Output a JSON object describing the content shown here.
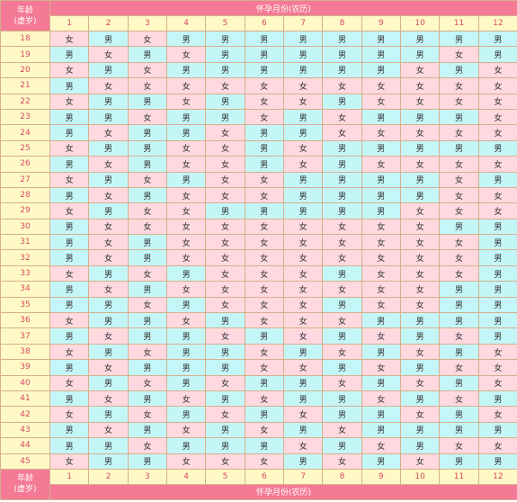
{
  "header": {
    "age_title_line1": "年龄",
    "age_title_line2": "(虚岁)",
    "month_title": "怀孕月份(农历)"
  },
  "months": [
    "1",
    "2",
    "3",
    "4",
    "5",
    "6",
    "7",
    "8",
    "9",
    "10",
    "11",
    "12"
  ],
  "legend": {
    "boy": "男",
    "girl": "女"
  },
  "colors": {
    "header_bg": "#f47a96",
    "label_bg": "#fff9c6",
    "label_text": "#d84a64",
    "boy_bg": "#c4f6f8",
    "girl_bg": "#ffd9df",
    "border": "#d6b08c"
  },
  "rows": [
    {
      "age": "18",
      "cells": [
        "女",
        "男",
        "女",
        "男",
        "男",
        "男",
        "男",
        "男",
        "男",
        "男",
        "男",
        "男"
      ]
    },
    {
      "age": "19",
      "cells": [
        "男",
        "女",
        "男",
        "女",
        "男",
        "男",
        "男",
        "男",
        "男",
        "男",
        "女",
        "男"
      ]
    },
    {
      "age": "20",
      "cells": [
        "女",
        "男",
        "女",
        "男",
        "男",
        "男",
        "男",
        "男",
        "男",
        "女",
        "男",
        "女"
      ]
    },
    {
      "age": "21",
      "cells": [
        "男",
        "女",
        "女",
        "女",
        "女",
        "女",
        "女",
        "女",
        "女",
        "女",
        "女",
        "女"
      ]
    },
    {
      "age": "22",
      "cells": [
        "女",
        "男",
        "男",
        "女",
        "男",
        "女",
        "女",
        "男",
        "女",
        "女",
        "女",
        "女"
      ]
    },
    {
      "age": "23",
      "cells": [
        "男",
        "男",
        "女",
        "男",
        "男",
        "女",
        "男",
        "女",
        "男",
        "男",
        "男",
        "女"
      ]
    },
    {
      "age": "24",
      "cells": [
        "男",
        "女",
        "男",
        "男",
        "女",
        "男",
        "男",
        "女",
        "女",
        "女",
        "女",
        "女"
      ]
    },
    {
      "age": "25",
      "cells": [
        "女",
        "男",
        "男",
        "女",
        "女",
        "男",
        "女",
        "男",
        "男",
        "男",
        "男",
        "男"
      ]
    },
    {
      "age": "26",
      "cells": [
        "男",
        "女",
        "男",
        "女",
        "女",
        "男",
        "女",
        "男",
        "女",
        "女",
        "女",
        "女"
      ]
    },
    {
      "age": "27",
      "cells": [
        "女",
        "男",
        "女",
        "男",
        "女",
        "女",
        "男",
        "男",
        "男",
        "男",
        "女",
        "男"
      ]
    },
    {
      "age": "28",
      "cells": [
        "男",
        "女",
        "男",
        "女",
        "女",
        "女",
        "男",
        "男",
        "男",
        "男",
        "女",
        "女"
      ]
    },
    {
      "age": "29",
      "cells": [
        "女",
        "男",
        "女",
        "女",
        "男",
        "男",
        "男",
        "男",
        "男",
        "女",
        "女",
        "女"
      ]
    },
    {
      "age": "30",
      "cells": [
        "男",
        "女",
        "女",
        "女",
        "女",
        "女",
        "女",
        "女",
        "女",
        "女",
        "男",
        "男"
      ]
    },
    {
      "age": "31",
      "cells": [
        "男",
        "女",
        "男",
        "女",
        "女",
        "女",
        "女",
        "女",
        "女",
        "女",
        "女",
        "男"
      ]
    },
    {
      "age": "32",
      "cells": [
        "男",
        "女",
        "男",
        "女",
        "女",
        "女",
        "女",
        "女",
        "女",
        "女",
        "女",
        "男"
      ]
    },
    {
      "age": "33",
      "cells": [
        "女",
        "男",
        "女",
        "男",
        "女",
        "女",
        "女",
        "男",
        "女",
        "女",
        "女",
        "男"
      ]
    },
    {
      "age": "34",
      "cells": [
        "男",
        "女",
        "男",
        "女",
        "女",
        "女",
        "女",
        "女",
        "女",
        "女",
        "男",
        "男"
      ]
    },
    {
      "age": "35",
      "cells": [
        "男",
        "男",
        "女",
        "男",
        "女",
        "女",
        "女",
        "男",
        "女",
        "女",
        "男",
        "男"
      ]
    },
    {
      "age": "36",
      "cells": [
        "女",
        "男",
        "男",
        "女",
        "男",
        "女",
        "女",
        "女",
        "男",
        "男",
        "男",
        "男"
      ]
    },
    {
      "age": "37",
      "cells": [
        "男",
        "女",
        "男",
        "男",
        "女",
        "男",
        "女",
        "男",
        "女",
        "男",
        "女",
        "男"
      ]
    },
    {
      "age": "38",
      "cells": [
        "女",
        "男",
        "女",
        "男",
        "男",
        "女",
        "男",
        "女",
        "男",
        "女",
        "男",
        "女"
      ]
    },
    {
      "age": "39",
      "cells": [
        "男",
        "女",
        "男",
        "男",
        "男",
        "女",
        "女",
        "男",
        "女",
        "男",
        "女",
        "女"
      ]
    },
    {
      "age": "40",
      "cells": [
        "女",
        "男",
        "女",
        "男",
        "女",
        "男",
        "男",
        "女",
        "男",
        "女",
        "男",
        "女"
      ]
    },
    {
      "age": "41",
      "cells": [
        "男",
        "女",
        "男",
        "女",
        "男",
        "女",
        "男",
        "男",
        "女",
        "男",
        "女",
        "男"
      ]
    },
    {
      "age": "42",
      "cells": [
        "女",
        "男",
        "女",
        "男",
        "女",
        "男",
        "女",
        "男",
        "男",
        "女",
        "男",
        "女"
      ]
    },
    {
      "age": "43",
      "cells": [
        "男",
        "女",
        "男",
        "女",
        "男",
        "女",
        "男",
        "女",
        "男",
        "男",
        "男",
        "男"
      ]
    },
    {
      "age": "44",
      "cells": [
        "男",
        "男",
        "女",
        "男",
        "男",
        "男",
        "女",
        "男",
        "女",
        "男",
        "女",
        "女"
      ]
    },
    {
      "age": "45",
      "cells": [
        "女",
        "男",
        "男",
        "女",
        "女",
        "女",
        "男",
        "女",
        "男",
        "女",
        "男",
        "男"
      ]
    }
  ]
}
